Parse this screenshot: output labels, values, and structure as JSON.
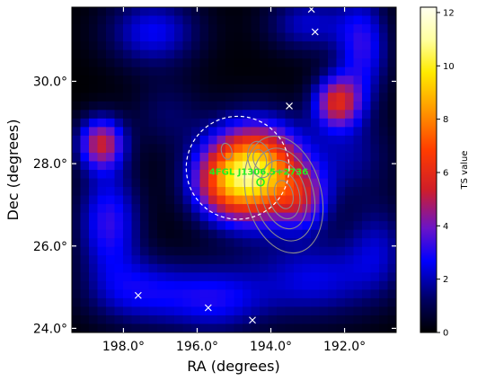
{
  "chart_data": {
    "type": "heatmap",
    "title": "",
    "xlabel": "RA (degrees)",
    "ylabel": "Dec (degrees)",
    "xlim": [
      199.4,
      190.6
    ],
    "ylim": [
      23.9,
      31.8
    ],
    "x_reversed": true,
    "x_ticks": [
      198,
      196,
      194,
      192
    ],
    "x_tick_labels": [
      "198.0°",
      "196.0°",
      "194.0°",
      "192.0°"
    ],
    "y_ticks": [
      24,
      26,
      28,
      30
    ],
    "y_tick_labels": [
      "24.0°",
      "26.0°",
      "28.0°",
      "30.0°"
    ],
    "colorbar": {
      "label": "TS value",
      "min": 0,
      "max": 12.2,
      "ticks": [
        0,
        2,
        4,
        6,
        8,
        10,
        12
      ],
      "tick_labels": [
        "0",
        "2",
        "4",
        "6",
        "8",
        "10",
        "12"
      ],
      "colormap": "gist_heat-like (black → blue → purple → red → orange → yellow → white)"
    },
    "ts_blobs": [
      {
        "ra": 194.4,
        "dec": 27.8,
        "ts": 9.5,
        "sigma_ra": 0.9,
        "sigma_dec": 0.8
      },
      {
        "ra": 195.3,
        "dec": 27.5,
        "ts": 3.2,
        "sigma_ra": 0.7,
        "sigma_dec": 0.6
      },
      {
        "ra": 193.1,
        "dec": 27.1,
        "ts": 3.0,
        "sigma_ra": 0.5,
        "sigma_dec": 0.5
      },
      {
        "ra": 198.6,
        "dec": 28.5,
        "ts": 5.0,
        "sigma_ra": 0.45,
        "sigma_dec": 0.45
      },
      {
        "ra": 192.2,
        "dec": 29.5,
        "ts": 5.2,
        "sigma_ra": 0.45,
        "sigma_dec": 0.45
      },
      {
        "ra": 198.4,
        "dec": 26.6,
        "ts": 3.2,
        "sigma_ra": 0.6,
        "sigma_dec": 0.9
      },
      {
        "ra": 197.2,
        "dec": 31.2,
        "ts": 2.6,
        "sigma_ra": 0.9,
        "sigma_dec": 0.6
      },
      {
        "ra": 193.0,
        "dec": 31.4,
        "ts": 2.2,
        "sigma_ra": 0.8,
        "sigma_dec": 0.5
      },
      {
        "ra": 191.5,
        "dec": 30.8,
        "ts": 3.0,
        "sigma_ra": 0.5,
        "sigma_dec": 0.9
      },
      {
        "ra": 191.8,
        "dec": 28.2,
        "ts": 1.6,
        "sigma_ra": 0.8,
        "sigma_dec": 0.7
      },
      {
        "ra": 197.6,
        "dec": 24.9,
        "ts": 2.4,
        "sigma_ra": 1.0,
        "sigma_dec": 0.6
      },
      {
        "ra": 195.5,
        "dec": 24.7,
        "ts": 2.6,
        "sigma_ra": 1.0,
        "sigma_dec": 0.6
      },
      {
        "ra": 192.8,
        "dec": 25.2,
        "ts": 2.4,
        "sigma_ra": 1.2,
        "sigma_dec": 0.7
      },
      {
        "ra": 191.1,
        "dec": 26.0,
        "ts": 1.8,
        "sigma_ra": 0.6,
        "sigma_dec": 0.8
      },
      {
        "ra": 196.8,
        "dec": 29.2,
        "ts": 1.2,
        "sigma_ra": 0.7,
        "sigma_dec": 0.6
      }
    ],
    "circle": {
      "ra": 194.9,
      "dec": 27.9,
      "radius_deg": 1.25,
      "style": "dashed white"
    },
    "source": {
      "name": "4FGL J1306.5+2736",
      "ra": 194.28,
      "dec": 27.55,
      "marker": "green circle"
    },
    "contours": [
      {
        "ra": 193.65,
        "dec": 27.25,
        "levels": [
          0.35,
          0.6,
          0.85,
          1.15,
          1.45
        ]
      },
      {
        "ra": 194.3,
        "dec": 28.1,
        "levels": [
          0.25,
          0.45
        ]
      },
      {
        "ra": 195.2,
        "dec": 28.3,
        "levels": [
          0.2
        ]
      }
    ],
    "x_markers": [
      {
        "ra": 192.9,
        "dec": 31.75
      },
      {
        "ra": 192.8,
        "dec": 31.2
      },
      {
        "ra": 193.5,
        "dec": 29.4
      },
      {
        "ra": 197.6,
        "dec": 24.8
      },
      {
        "ra": 195.7,
        "dec": 24.5
      },
      {
        "ra": 194.5,
        "dec": 24.2
      }
    ]
  }
}
